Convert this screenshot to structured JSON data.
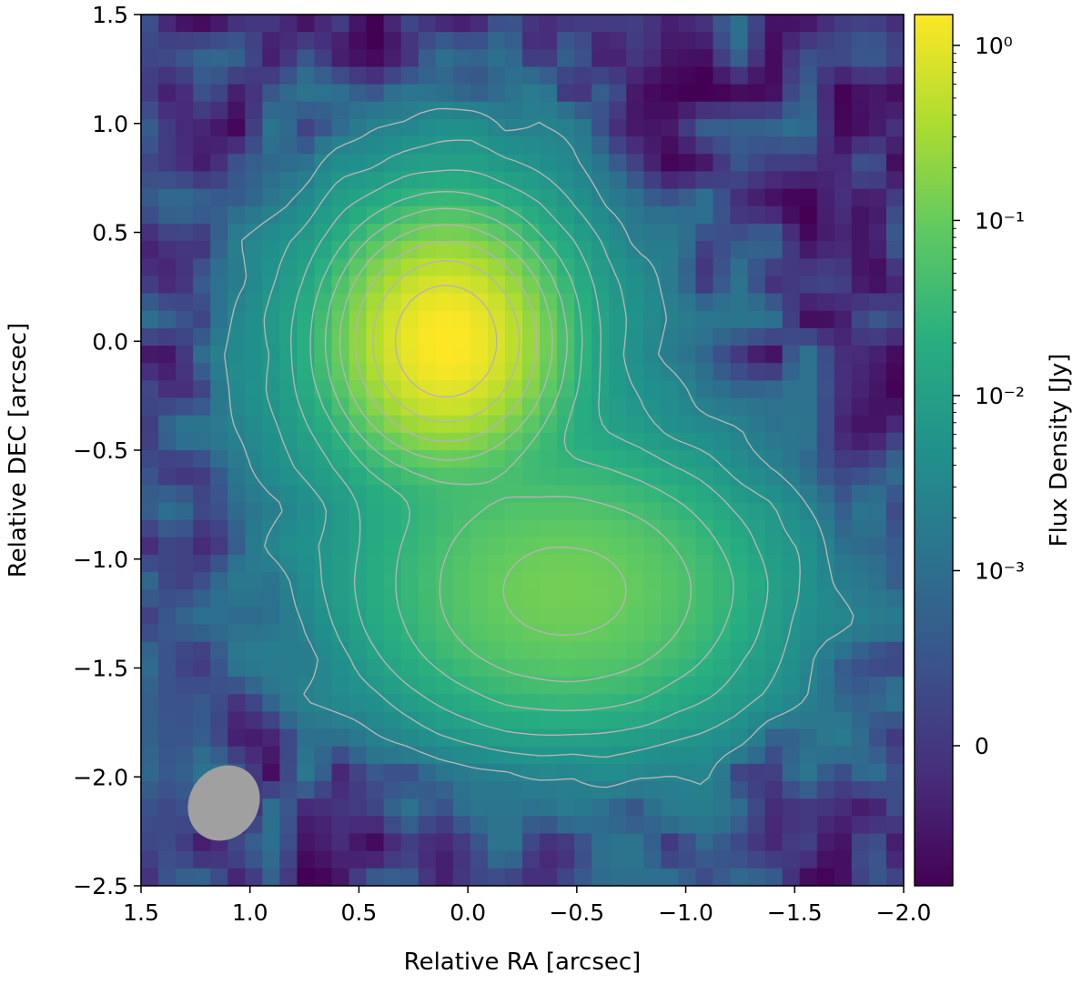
{
  "chart_data": {
    "type": "heatmap",
    "title": "",
    "xlabel": "Relative RA [arcsec]",
    "ylabel": "Relative DEC [arcsec]",
    "xlim": [
      1.5,
      -2.0
    ],
    "ylim": [
      -2.5,
      1.5
    ],
    "x_ticks": [
      1.5,
      1.0,
      0.5,
      0.0,
      -0.5,
      -1.0,
      -1.5,
      -2.0
    ],
    "x_tick_labels": [
      "1.5",
      "1.0",
      "0.5",
      "0.0",
      "−0.5",
      "−1.0",
      "−1.5",
      "−2.0"
    ],
    "y_ticks": [
      1.5,
      1.0,
      0.5,
      0.0,
      -0.5,
      -1.0,
      -1.5,
      -2.0,
      -2.5
    ],
    "y_tick_labels": [
      "1.5",
      "1.0",
      "0.5",
      "0.0",
      "−0.5",
      "−1.0",
      "−1.5",
      "−2.0",
      "−2.5"
    ],
    "colormap": "viridis",
    "colorbar": {
      "label": "Flux Density [Jy]",
      "scale": "symlog",
      "range": [
        -0.0008,
        1.5
      ],
      "ticks": [
        1.0,
        0.1,
        0.01,
        0.001,
        0.0
      ],
      "tick_labels": [
        "10⁰",
        "10⁻¹",
        "10⁻²",
        "10⁻³",
        "0"
      ]
    },
    "sources": [
      {
        "ra": 0.1,
        "dec": 0.0,
        "peak_flux": 1.5,
        "sigma_ra": 0.2,
        "sigma_dec": 0.22
      },
      {
        "ra": -0.45,
        "dec": -1.15,
        "peak_flux": 0.12,
        "sigma_ra": 0.42,
        "sigma_dec": 0.3
      }
    ],
    "contours": {
      "positive_style": "solid",
      "negative_style": "dashed",
      "color": "#b4b4b4",
      "levels": [
        -0.0012,
        0.0025,
        0.006,
        0.012,
        0.025,
        0.05,
        0.1,
        0.2,
        0.4,
        0.8
      ]
    },
    "beam": {
      "ra": 1.12,
      "dec": -2.12,
      "major_arcsec": 0.36,
      "minor_arcsec": 0.3,
      "color": "#a0a0a0"
    },
    "grid": false
  }
}
